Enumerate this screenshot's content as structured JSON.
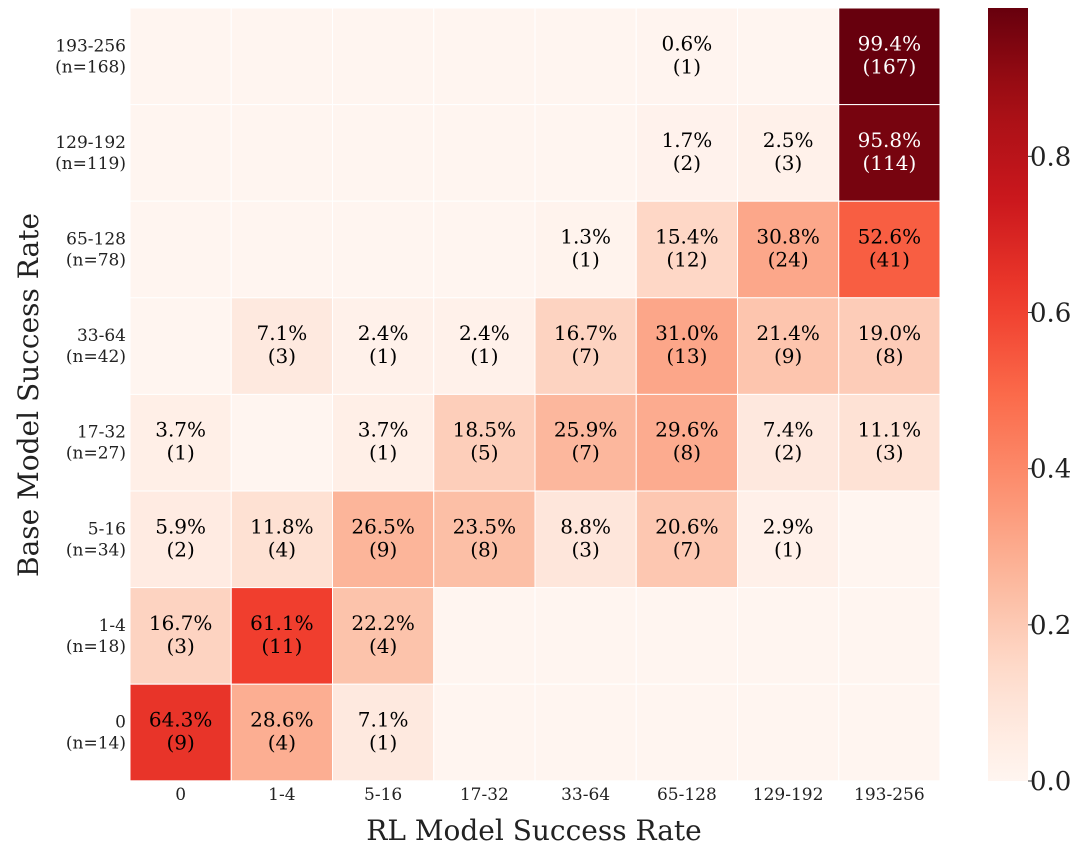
{
  "chart_data": {
    "type": "heatmap",
    "xlabel": "RL Model Success Rate",
    "ylabel": "Base Model Success Rate",
    "x_categories": [
      "0",
      "1-4",
      "5-16",
      "17-32",
      "33-64",
      "65-128",
      "129-192",
      "193-256"
    ],
    "y_categories": [
      {
        "range": "193-256",
        "n": "(n=168)"
      },
      {
        "range": "129-192",
        "n": "(n=119)"
      },
      {
        "range": "65-128",
        "n": "(n=78)"
      },
      {
        "range": "33-64",
        "n": "(n=42)"
      },
      {
        "range": "17-32",
        "n": "(n=27)"
      },
      {
        "range": "5-16",
        "n": "(n=34)"
      },
      {
        "range": "1-4",
        "n": "(n=18)"
      },
      {
        "range": "0",
        "n": "(n=14)"
      }
    ],
    "values": [
      [
        0,
        0,
        0,
        0,
        0,
        0.006,
        0,
        0.994
      ],
      [
        0,
        0,
        0,
        0,
        0,
        0.017,
        0.025,
        0.958
      ],
      [
        0,
        0,
        0,
        0,
        0.013,
        0.154,
        0.308,
        0.526
      ],
      [
        0,
        0.071,
        0.024,
        0.024,
        0.167,
        0.31,
        0.214,
        0.19
      ],
      [
        0.037,
        0,
        0.037,
        0.185,
        0.259,
        0.296,
        0.074,
        0.111
      ],
      [
        0.059,
        0.118,
        0.265,
        0.235,
        0.088,
        0.206,
        0.029,
        0
      ],
      [
        0.167,
        0.611,
        0.222,
        0,
        0,
        0,
        0,
        0
      ],
      [
        0.643,
        0.286,
        0.071,
        0,
        0,
        0,
        0,
        0
      ]
    ],
    "labels": [
      [
        "",
        "",
        "",
        "",
        "",
        "0.6%",
        "",
        "99.4%"
      ],
      [
        "",
        "",
        "",
        "",
        "",
        "1.7%",
        "2.5%",
        "95.8%"
      ],
      [
        "",
        "",
        "",
        "",
        "1.3%",
        "15.4%",
        "30.8%",
        "52.6%"
      ],
      [
        "",
        "7.1%",
        "2.4%",
        "2.4%",
        "16.7%",
        "31.0%",
        "21.4%",
        "19.0%"
      ],
      [
        "3.7%",
        "",
        "3.7%",
        "18.5%",
        "25.9%",
        "29.6%",
        "7.4%",
        "11.1%"
      ],
      [
        "5.9%",
        "11.8%",
        "26.5%",
        "23.5%",
        "8.8%",
        "20.6%",
        "2.9%",
        ""
      ],
      [
        "16.7%",
        "61.1%",
        "22.2%",
        "",
        "",
        "",
        "",
        ""
      ],
      [
        "64.3%",
        "28.6%",
        "7.1%",
        "",
        "",
        "",
        "",
        ""
      ]
    ],
    "counts": [
      [
        "",
        "",
        "",
        "",
        "",
        "(1)",
        "",
        "(167)"
      ],
      [
        "",
        "",
        "",
        "",
        "",
        "(2)",
        "(3)",
        "(114)"
      ],
      [
        "",
        "",
        "",
        "",
        "(1)",
        "(12)",
        "(24)",
        "(41)"
      ],
      [
        "",
        "(3)",
        "(1)",
        "(1)",
        "(7)",
        "(13)",
        "(9)",
        "(8)"
      ],
      [
        "(1)",
        "",
        "(1)",
        "(5)",
        "(7)",
        "(8)",
        "(2)",
        "(3)"
      ],
      [
        "(2)",
        "(4)",
        "(9)",
        "(8)",
        "(3)",
        "(7)",
        "(1)",
        ""
      ],
      [
        "(3)",
        "(11)",
        "(4)",
        "",
        "",
        "",
        "",
        ""
      ],
      [
        "(9)",
        "(4)",
        "(1)",
        "",
        "",
        "",
        "",
        ""
      ]
    ],
    "colorbar": {
      "range": [
        0,
        0.99
      ],
      "ticks": [
        0.0,
        0.2,
        0.4,
        0.6,
        0.8
      ],
      "tick_labels": [
        "0.0",
        "0.2",
        "0.4",
        "0.6",
        "0.8"
      ],
      "colormap": "Reds"
    }
  }
}
